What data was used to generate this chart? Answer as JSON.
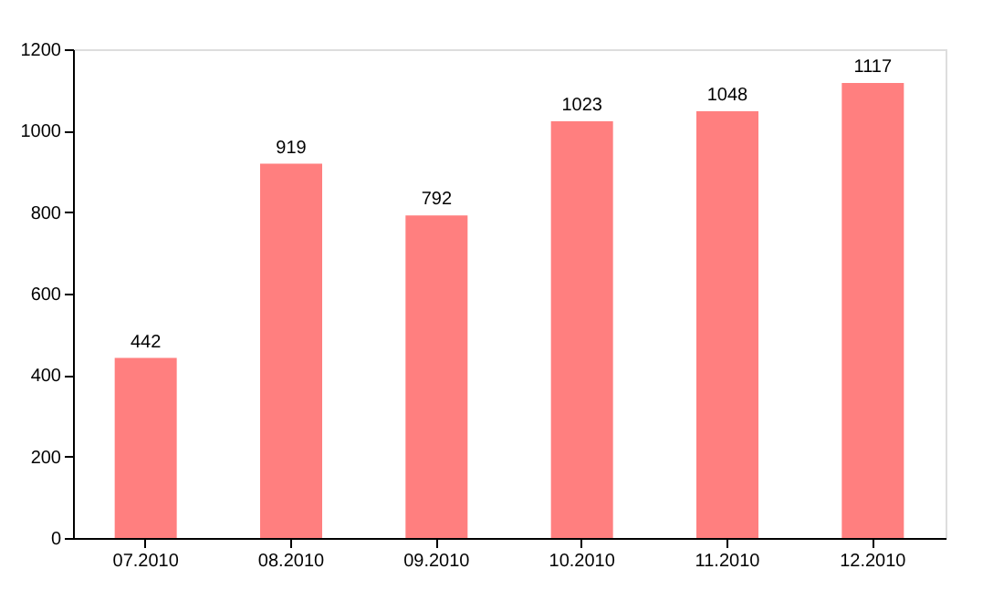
{
  "chart_data": {
    "type": "bar",
    "categories": [
      "07.2010",
      "08.2010",
      "09.2010",
      "10.2010",
      "11.2010",
      "12.2010"
    ],
    "values": [
      442,
      919,
      792,
      1023,
      1048,
      1117
    ],
    "color": "#ff7f7f",
    "ylim": [
      0,
      1200
    ],
    "yticks": [
      0,
      200,
      400,
      600,
      800,
      1000,
      1200
    ],
    "grid": false,
    "data_labels": true
  }
}
